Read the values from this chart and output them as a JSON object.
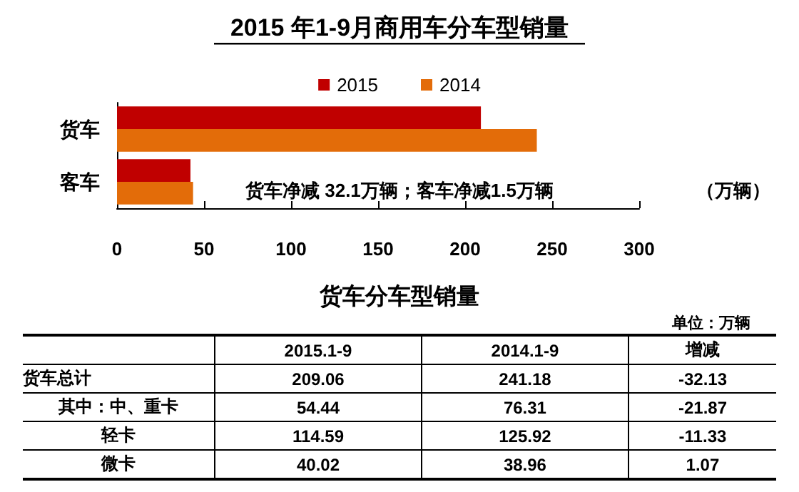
{
  "chart_data": [
    {
      "type": "bar",
      "title": "2015 年1-9月商用车分车型销量",
      "orientation": "horizontal",
      "categories": [
        "货车",
        "客车"
      ],
      "series": [
        {
          "name": "2015",
          "color": "#c00000",
          "values": [
            209.06,
            42.2
          ]
        },
        {
          "name": "2014",
          "color": "#e36c09",
          "values": [
            241.18,
            43.7
          ]
        }
      ],
      "xlabel": "（万辆）",
      "xlim": [
        0,
        300
      ],
      "xticks": [
        0,
        50,
        100,
        150,
        200,
        250,
        300
      ],
      "grid": false,
      "legend": "top",
      "annotations": [
        "货车净减 32.1万辆；客车净减1.5万辆"
      ]
    },
    {
      "type": "other",
      "title": "货车分车型销量",
      "annotations": [
        "单位：万辆"
      ],
      "categories": [
        "货车总计",
        "其中：中、重卡",
        "轻卡",
        "微卡"
      ],
      "series": [
        {
          "name": "2015.1-9",
          "values": [
            209.06,
            54.44,
            114.59,
            40.02
          ]
        },
        {
          "name": "2014.1-9",
          "values": [
            241.18,
            76.31,
            125.92,
            38.96
          ]
        },
        {
          "name": "增减",
          "values": [
            -32.13,
            -21.87,
            -11.33,
            1.07
          ]
        }
      ],
      "data_labels": true
    }
  ]
}
